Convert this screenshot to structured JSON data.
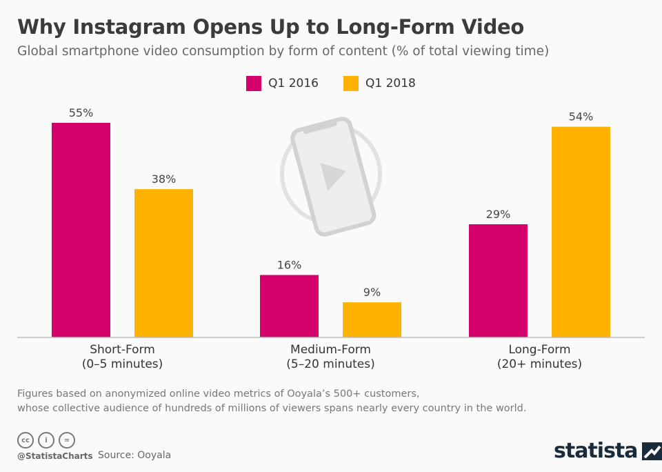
{
  "chart_data": {
    "type": "bar",
    "title": "Why Instagram Opens Up to Long-Form Video",
    "subtitle": "Global smartphone video consumption by form of content (% of total viewing time)",
    "categories": [
      {
        "name": "Short-Form",
        "sub": "(0–5 minutes)"
      },
      {
        "name": "Medium-Form",
        "sub": "(5–20 minutes)"
      },
      {
        "name": "Long-Form",
        "sub": "(20+ minutes)"
      }
    ],
    "series": [
      {
        "name": "Q1 2016",
        "color": "#d5006b",
        "values": [
          55,
          16,
          29
        ],
        "labels": [
          "55%",
          "16%",
          "29%"
        ]
      },
      {
        "name": "Q1 2018",
        "color": "#ffb200",
        "values": [
          38,
          9,
          54
        ],
        "labels": [
          "38%",
          "9%",
          "54%"
        ]
      }
    ],
    "unit": "%",
    "ylim": [
      0,
      55
    ],
    "grid": false,
    "legend": "top-center"
  },
  "footer": {
    "note_line1": "Figures based on anonymized online video metrics of Ooyala’s 500+ customers,",
    "note_line2": "whose collective audience of hundreds of millions of viewers spans nearly every country in the world.",
    "handle": "@StatistaCharts",
    "source": "Source: Ooyala",
    "license_icons": [
      "cc",
      "by",
      "nd"
    ],
    "logo": "statista"
  }
}
